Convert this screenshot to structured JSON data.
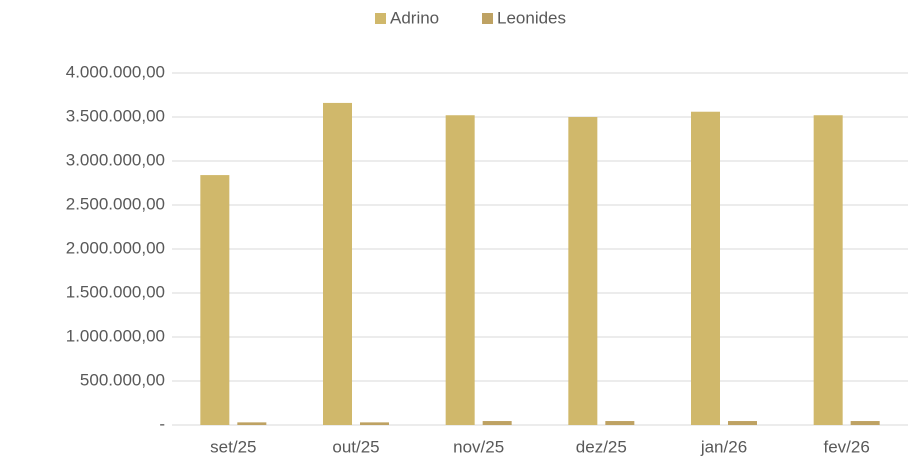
{
  "chart_data": {
    "type": "bar",
    "categories": [
      "set/25",
      "out/25",
      "nov/25",
      "dez/25",
      "jan/26",
      "fev/26"
    ],
    "series": [
      {
        "name": "Adrino",
        "color": "#d0b86b",
        "values": [
          2840000,
          3660000,
          3520000,
          3500000,
          3560000,
          3520000
        ]
      },
      {
        "name": "Leonides",
        "color": "#bea263",
        "values": [
          30000,
          30000,
          45000,
          45000,
          45000,
          45000
        ]
      }
    ],
    "ylim": [
      0,
      4000000
    ],
    "yticks": [
      {
        "value": 0,
        "label": "-"
      },
      {
        "value": 500000,
        "label": "500.000,00"
      },
      {
        "value": 1000000,
        "label": "1.000.000,00"
      },
      {
        "value": 1500000,
        "label": "1.500.000,00"
      },
      {
        "value": 2000000,
        "label": "2.000.000,00"
      },
      {
        "value": 2500000,
        "label": "2.500.000,00"
      },
      {
        "value": 3000000,
        "label": "3.000.000,00"
      },
      {
        "value": 3500000,
        "label": "3.500.000,00"
      },
      {
        "value": 4000000,
        "label": "4.000.000,00"
      }
    ],
    "grid": true,
    "legend": "top"
  }
}
